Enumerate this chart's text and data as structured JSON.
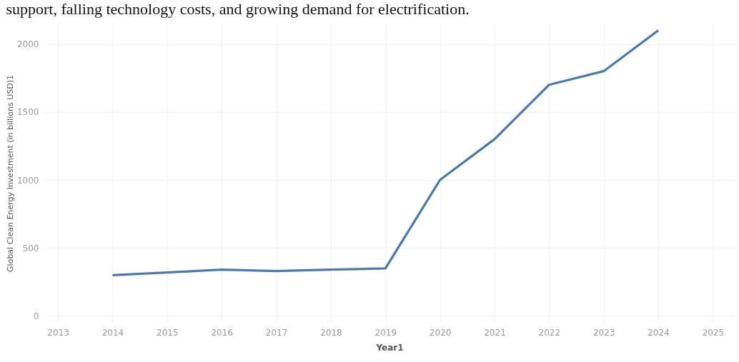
{
  "chart_data": {
    "type": "line",
    "xlabel": "Year1",
    "ylabel": "Global Clean Energy Investment (in billions USD)1",
    "annotations": [
      "support, falling technology costs, and growing demand for electrification."
    ],
    "x": [
      2014,
      2015,
      2016,
      2017,
      2018,
      2019,
      2020,
      2021,
      2022,
      2023,
      2024
    ],
    "series": [
      {
        "color": "#4e79a7",
        "values": [
          300,
          320,
          340,
          330,
          340,
          350,
          1000,
          1300,
          1700,
          1800,
          2100
        ]
      }
    ],
    "xlim": [
      2012.75,
      2025.4
    ],
    "xticks": [
      2013,
      2014,
      2015,
      2016,
      2017,
      2018,
      2019,
      2020,
      2021,
      2022,
      2023,
      2024,
      2025
    ],
    "ylim": [
      -50,
      2150
    ],
    "yticks": [
      0,
      500,
      1000,
      1500,
      2000
    ],
    "grid": true,
    "line_style": "solid",
    "marker": "none"
  }
}
